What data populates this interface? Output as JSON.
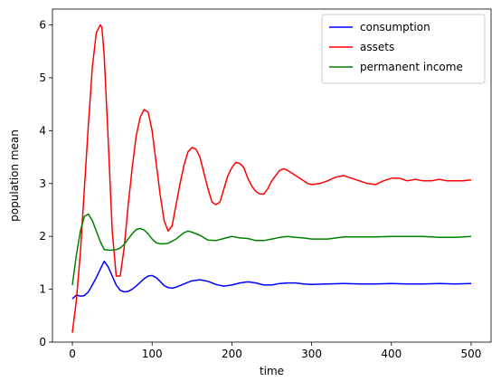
{
  "chart_data": {
    "type": "line",
    "xlabel": "time",
    "ylabel": "population mean",
    "xlim": [
      -25,
      525
    ],
    "ylim": [
      0,
      6.3
    ],
    "xticks": [
      0,
      100,
      200,
      300,
      400,
      500
    ],
    "yticks": [
      0,
      1,
      2,
      3,
      4,
      5,
      6
    ],
    "grid": false,
    "legend_placement": "top-right",
    "series": [
      {
        "name": "consumption",
        "color": "#0000ff",
        "x": [
          0,
          5,
          10,
          15,
          20,
          25,
          30,
          35,
          40,
          45,
          50,
          55,
          60,
          65,
          70,
          75,
          80,
          85,
          90,
          95,
          100,
          105,
          110,
          115,
          120,
          125,
          130,
          140,
          150,
          160,
          170,
          180,
          190,
          200,
          210,
          220,
          230,
          240,
          250,
          260,
          270,
          280,
          290,
          300,
          320,
          340,
          360,
          380,
          400,
          420,
          440,
          460,
          480,
          500
        ],
        "values": [
          0.82,
          0.89,
          0.87,
          0.88,
          0.95,
          1.08,
          1.22,
          1.38,
          1.53,
          1.42,
          1.25,
          1.08,
          0.98,
          0.95,
          0.96,
          1.0,
          1.06,
          1.13,
          1.2,
          1.25,
          1.26,
          1.22,
          1.15,
          1.07,
          1.03,
          1.02,
          1.04,
          1.1,
          1.16,
          1.18,
          1.15,
          1.09,
          1.06,
          1.08,
          1.12,
          1.14,
          1.12,
          1.08,
          1.08,
          1.11,
          1.12,
          1.12,
          1.1,
          1.09,
          1.1,
          1.11,
          1.1,
          1.1,
          1.11,
          1.1,
          1.1,
          1.11,
          1.1,
          1.11
        ]
      },
      {
        "name": "assets",
        "color": "#ff0000",
        "x": [
          0,
          5,
          10,
          15,
          20,
          25,
          30,
          35,
          37,
          40,
          45,
          50,
          55,
          60,
          65,
          70,
          75,
          80,
          85,
          90,
          95,
          100,
          105,
          110,
          115,
          120,
          125,
          130,
          135,
          140,
          145,
          150,
          155,
          160,
          165,
          170,
          175,
          180,
          185,
          190,
          195,
          200,
          205,
          210,
          215,
          220,
          225,
          230,
          235,
          240,
          245,
          250,
          255,
          260,
          265,
          270,
          275,
          280,
          285,
          290,
          295,
          300,
          310,
          320,
          330,
          340,
          350,
          360,
          370,
          380,
          390,
          400,
          410,
          420,
          430,
          440,
          450,
          460,
          470,
          480,
          490,
          500
        ],
        "values": [
          0.18,
          0.8,
          1.7,
          2.9,
          4.1,
          5.2,
          5.85,
          6.0,
          5.95,
          5.4,
          3.8,
          2.1,
          1.25,
          1.25,
          1.8,
          2.6,
          3.3,
          3.9,
          4.25,
          4.4,
          4.35,
          4.0,
          3.4,
          2.8,
          2.3,
          2.1,
          2.2,
          2.6,
          3.0,
          3.35,
          3.6,
          3.68,
          3.65,
          3.5,
          3.2,
          2.9,
          2.65,
          2.6,
          2.65,
          2.9,
          3.15,
          3.3,
          3.4,
          3.38,
          3.3,
          3.1,
          2.95,
          2.85,
          2.8,
          2.8,
          2.9,
          3.05,
          3.15,
          3.25,
          3.28,
          3.25,
          3.2,
          3.15,
          3.1,
          3.05,
          3.0,
          2.98,
          3.0,
          3.05,
          3.12,
          3.15,
          3.1,
          3.05,
          3.0,
          2.98,
          3.05,
          3.1,
          3.1,
          3.05,
          3.08,
          3.05,
          3.05,
          3.08,
          3.05,
          3.05,
          3.05,
          3.07
        ]
      },
      {
        "name": "permanent income",
        "color": "#008000",
        "x": [
          0,
          5,
          10,
          15,
          20,
          25,
          30,
          35,
          40,
          45,
          50,
          55,
          60,
          65,
          70,
          75,
          80,
          85,
          90,
          95,
          100,
          105,
          110,
          115,
          120,
          130,
          140,
          145,
          150,
          160,
          170,
          180,
          190,
          200,
          210,
          220,
          230,
          240,
          250,
          260,
          270,
          280,
          290,
          300,
          320,
          340,
          360,
          380,
          400,
          420,
          440,
          460,
          480,
          500
        ],
        "values": [
          1.08,
          1.65,
          2.1,
          2.38,
          2.42,
          2.3,
          2.1,
          1.9,
          1.75,
          1.74,
          1.74,
          1.75,
          1.78,
          1.85,
          1.95,
          2.05,
          2.13,
          2.15,
          2.12,
          2.05,
          1.95,
          1.88,
          1.86,
          1.86,
          1.87,
          1.95,
          2.07,
          2.1,
          2.08,
          2.02,
          1.93,
          1.92,
          1.96,
          2.0,
          1.97,
          1.96,
          1.92,
          1.92,
          1.95,
          1.98,
          2.0,
          1.98,
          1.97,
          1.95,
          1.95,
          1.99,
          1.99,
          1.99,
          2.0,
          2.0,
          2.0,
          1.98,
          1.98,
          2.0
        ]
      }
    ]
  }
}
